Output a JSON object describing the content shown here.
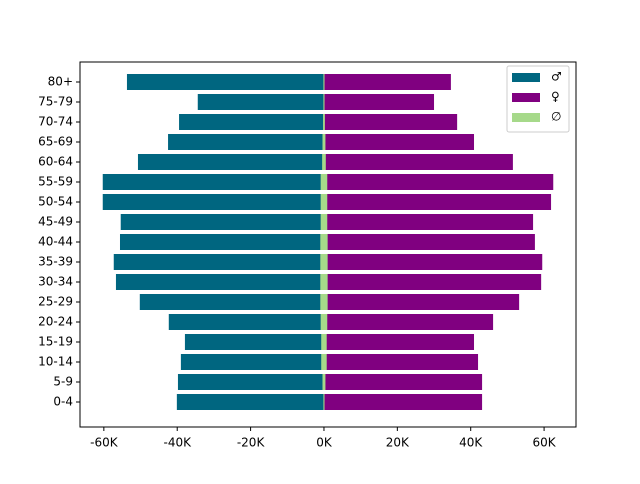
{
  "chart_data": {
    "type": "pyramid",
    "categories": [
      "0-4",
      "5-9",
      "10-14",
      "15-19",
      "20-24",
      "25-29",
      "30-34",
      "35-39",
      "40-44",
      "45-49",
      "50-54",
      "55-59",
      "60-64",
      "65-69",
      "70-74",
      "75-79",
      "80+"
    ],
    "series": [
      {
        "name": "♂",
        "color": "#006680",
        "values": [
          -40100,
          -39800,
          -39000,
          -37900,
          -42300,
          -50200,
          -56700,
          -57300,
          -55600,
          -55400,
          -60300,
          -60300,
          -50700,
          -42500,
          -39500,
          -34400,
          -53700
        ]
      },
      {
        "name": "♀",
        "color": "#800080",
        "values": [
          43100,
          43100,
          42000,
          40900,
          46100,
          53200,
          59200,
          59500,
          57500,
          57000,
          61900,
          62500,
          51500,
          40900,
          36300,
          30000,
          34600
        ]
      },
      {
        "name": "∅",
        "color": "#a6d98a",
        "values": [
          300,
          800,
          1500,
          1500,
          1800,
          2000,
          2000,
          2000,
          2000,
          1800,
          1800,
          1800,
          1000,
          800,
          500,
          300,
          300
        ]
      }
    ],
    "xlim": [
      -66500,
      68700
    ],
    "xticks": [
      {
        "value": -60000,
        "label": "-60K"
      },
      {
        "value": -40000,
        "label": "-40K"
      },
      {
        "value": -20000,
        "label": "-20K"
      },
      {
        "value": 0,
        "label": "0K"
      },
      {
        "value": 20000,
        "label": "20K"
      },
      {
        "value": 40000,
        "label": "40K"
      },
      {
        "value": 60000,
        "label": "60K"
      }
    ],
    "legend": "upper right"
  }
}
